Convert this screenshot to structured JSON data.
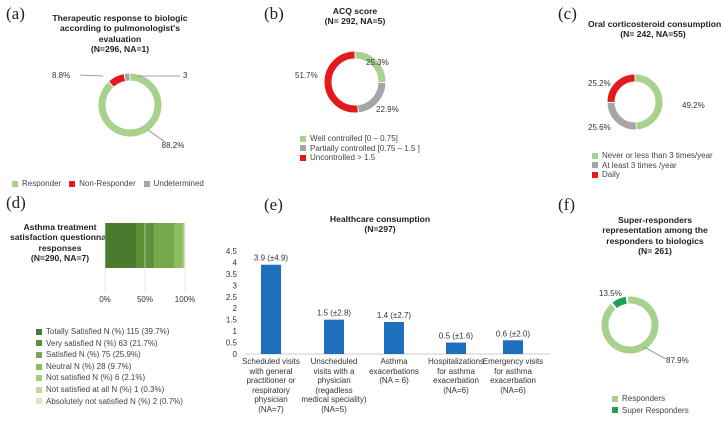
{
  "panels": {
    "a": {
      "letter": "(a)",
      "title_lines": [
        "Therapeutic response to biologic",
        "according to pulmonologist's",
        "evaluation",
        "(N=296, NA=1)"
      ]
    },
    "b": {
      "letter": "(b)",
      "title_lines": [
        "ACQ score",
        "(N= 292, NA=5)"
      ]
    },
    "c": {
      "letter": "(c)",
      "title_lines": [
        "Oral corticosteroid consumption",
        "(N= 242, NA=55)"
      ]
    },
    "d": {
      "letter": "(d)",
      "title_lines": [
        "Asthma treatment",
        "satisfaction questionnaire",
        "responses",
        "(N=290, NA=7)"
      ]
    },
    "e": {
      "letter": "(e)",
      "title_lines": [
        "Healthcare consumption",
        "(N=297)"
      ]
    },
    "f": {
      "letter": "(f)",
      "title_lines": [
        "Super-responders",
        "representation among the",
        "responders to biologics",
        "(N= 261)"
      ]
    }
  },
  "colors": {
    "light_green": "#a9d18e",
    "red": "#e31a1c",
    "gray": "#a6a6a6",
    "bar_blue": "#1f6fbf",
    "dark_green": "#5b8a3c",
    "super_green": "#1e9e57"
  },
  "chart_data": [
    {
      "id": "a",
      "type": "pie",
      "title": "Therapeutic response to biologic according to pulmonologist's evaluation (N=296, NA=1)",
      "slices": [
        {
          "name": "Responder",
          "value": 88.2,
          "label": "88.2%",
          "color": "#a9d18e"
        },
        {
          "name": "Non-Responder",
          "value": 8.8,
          "label": "8.8%",
          "color": "#e31a1c"
        },
        {
          "name": "Undetermined",
          "value": 3.0,
          "label": "3",
          "color": "#a6a6a6"
        }
      ],
      "legend_placement": "bottom"
    },
    {
      "id": "b",
      "type": "pie",
      "title": "ACQ score (N= 292, NA=5)",
      "slices": [
        {
          "name": "Well controlled [0 – 0.75]",
          "value": 25.3,
          "label": "25.3%",
          "color": "#a9d18e"
        },
        {
          "name": "Partially controlled [0.75 – 1.5 ]",
          "value": 22.9,
          "label": "22.9%",
          "color": "#a6a6a6"
        },
        {
          "name": "Uncontrolled > 1.5",
          "value": 51.7,
          "label": "51.7%",
          "color": "#e31a1c"
        }
      ],
      "legend_placement": "bottom"
    },
    {
      "id": "c",
      "type": "pie",
      "title": "Oral corticosteroid consumption (N= 242, NA=55)",
      "slices": [
        {
          "name": "Never or less than 3 times/year",
          "value": 49.2,
          "label": "49.2%",
          "color": "#a9d18e"
        },
        {
          "name": "At least 3 times  /year",
          "value": 25.6,
          "label": "25.6%",
          "color": "#a6a6a6"
        },
        {
          "name": "Daily",
          "value": 25.2,
          "label": "25.2%",
          "color": "#e31a1c"
        }
      ],
      "legend_placement": "bottom"
    },
    {
      "id": "d",
      "type": "bar",
      "orientation": "horizontal-stacked",
      "title": "Asthma treatment satisfaction questionnaire responses (N=290, NA=7)",
      "ticks": [
        "0%",
        "50%",
        "100%"
      ],
      "segments": [
        {
          "name": "Totally Satisfied N (%) 115 (39.7%)",
          "value": 39.7,
          "color": "#4a7a2e"
        },
        {
          "name": "Very satisfied N (%) 63 (21.7%)",
          "value": 21.7,
          "color": "#5d9138"
        },
        {
          "name": "Satisfied N (%) 75 (25.9%)",
          "value": 25.9,
          "color": "#74a84d"
        },
        {
          "name": "Neutral N (%) 28 (9.7%)",
          "value": 9.7,
          "color": "#8cbd62"
        },
        {
          "name": "Not satisfied N (%) 6 (2.1%)",
          "value": 2.1,
          "color": "#a3cf7c"
        },
        {
          "name": "Not satisfied at all N (%) 1 (0.3%)",
          "value": 0.3,
          "color": "#bddc9e"
        },
        {
          "name": "Absolutely not satisfied N (%) 2 (0.7%)",
          "value": 0.7,
          "color": "#d4e8c2"
        }
      ],
      "legend_placement": "bottom"
    },
    {
      "id": "e",
      "type": "bar",
      "title": "Healthcare consumption (N=297)",
      "ylim": [
        0,
        4.5
      ],
      "yticks": [
        "0",
        "0.5",
        "1",
        "1.5",
        "2",
        "2.5",
        "3",
        "3.5",
        "4",
        "4.5"
      ],
      "categories": [
        [
          "Scheduled visits",
          "with general",
          "practitioner or",
          "respiratory",
          "physician",
          "(NA=7)"
        ],
        [
          "Unscheduled",
          "visits with a",
          "physician",
          "(regadless",
          "medical speciality)",
          "(NA=5)"
        ],
        [
          "Asthma",
          "exacerbations",
          "(NA = 6)"
        ],
        [
          "Hospitalizations",
          "for asthma",
          "exacerbation",
          "(NA=6)"
        ],
        [
          "Emergency visits",
          "for asthma",
          "exacerbation",
          "(NA=6)"
        ]
      ],
      "values": [
        3.9,
        1.5,
        1.4,
        0.5,
        0.6
      ],
      "labels": [
        "3.9 (±4.9)",
        "1.5 (±2.8)",
        "1.4 (±2.7)",
        "0.5 (±1.6)",
        "0.6 (±2.0)"
      ],
      "color": "#1f6fbf"
    },
    {
      "id": "f",
      "type": "pie",
      "title": "Super-responders representation among the responders to biologics (N= 261)",
      "slices": [
        {
          "name": "Responders",
          "value": 87.9,
          "label": "87.9%",
          "color": "#a9d18e"
        },
        {
          "name": "Super Responders",
          "value": 13.5,
          "label": "13.5%",
          "color": "#1e9e57"
        }
      ],
      "legend_placement": "bottom"
    }
  ]
}
